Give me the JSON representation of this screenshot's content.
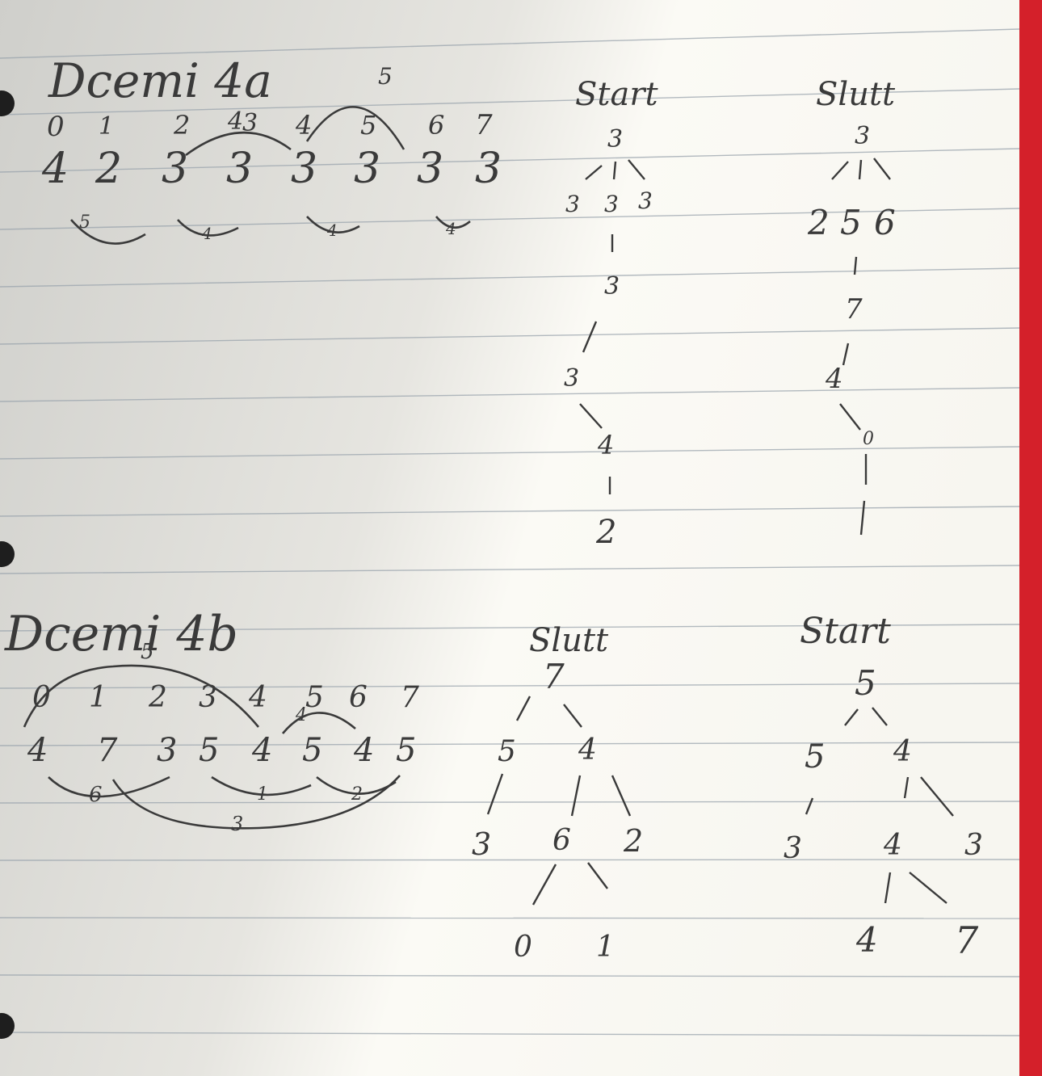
{
  "colors": {
    "paper": "#f2f1ec",
    "paper_shadow": "#c9c8c3",
    "rule_line": "#9aa4ad",
    "ink": "#3a3a3a",
    "red_margin": "#d4202a",
    "binder_hole": "#1e1e1e"
  },
  "section_a": {
    "title": "Dcemi 4a",
    "superscript": "5",
    "indices": [
      "0",
      "1",
      "2",
      "3",
      "4",
      "5",
      "6",
      "7"
    ],
    "index_overwrite": "4",
    "values": [
      "4",
      "2",
      "3",
      "3",
      "3",
      "3",
      "3",
      "3"
    ],
    "arcs": [
      "5",
      "4",
      "4",
      "4"
    ],
    "tree_start": {
      "label": "Start",
      "nodes": [
        "3",
        "3",
        "3",
        "3",
        "3",
        "3",
        "4",
        "2"
      ]
    },
    "tree_slutt": {
      "label": "Slutt",
      "nodes": [
        "3",
        "2",
        "5",
        "6",
        "7",
        "4",
        "0"
      ]
    }
  },
  "section_b": {
    "title": "Dcemi 4b",
    "subscript": "5",
    "indices": [
      "0",
      "1",
      "2",
      "3",
      "4",
      "5",
      "6",
      "7"
    ],
    "values": [
      "4",
      "7",
      "3",
      "5",
      "4",
      "5",
      "4",
      "5"
    ],
    "arc_top": "4",
    "arcs": [
      "6",
      "1",
      "2",
      "3"
    ],
    "tree_slutt": {
      "label": "Slutt",
      "nodes": [
        "7",
        "5",
        "4",
        "3",
        "6",
        "2",
        "0",
        "1"
      ]
    },
    "tree_start": {
      "label": "Start",
      "nodes": [
        "5",
        "5",
        "4",
        "3",
        "4",
        "3",
        "4",
        "7"
      ]
    }
  }
}
